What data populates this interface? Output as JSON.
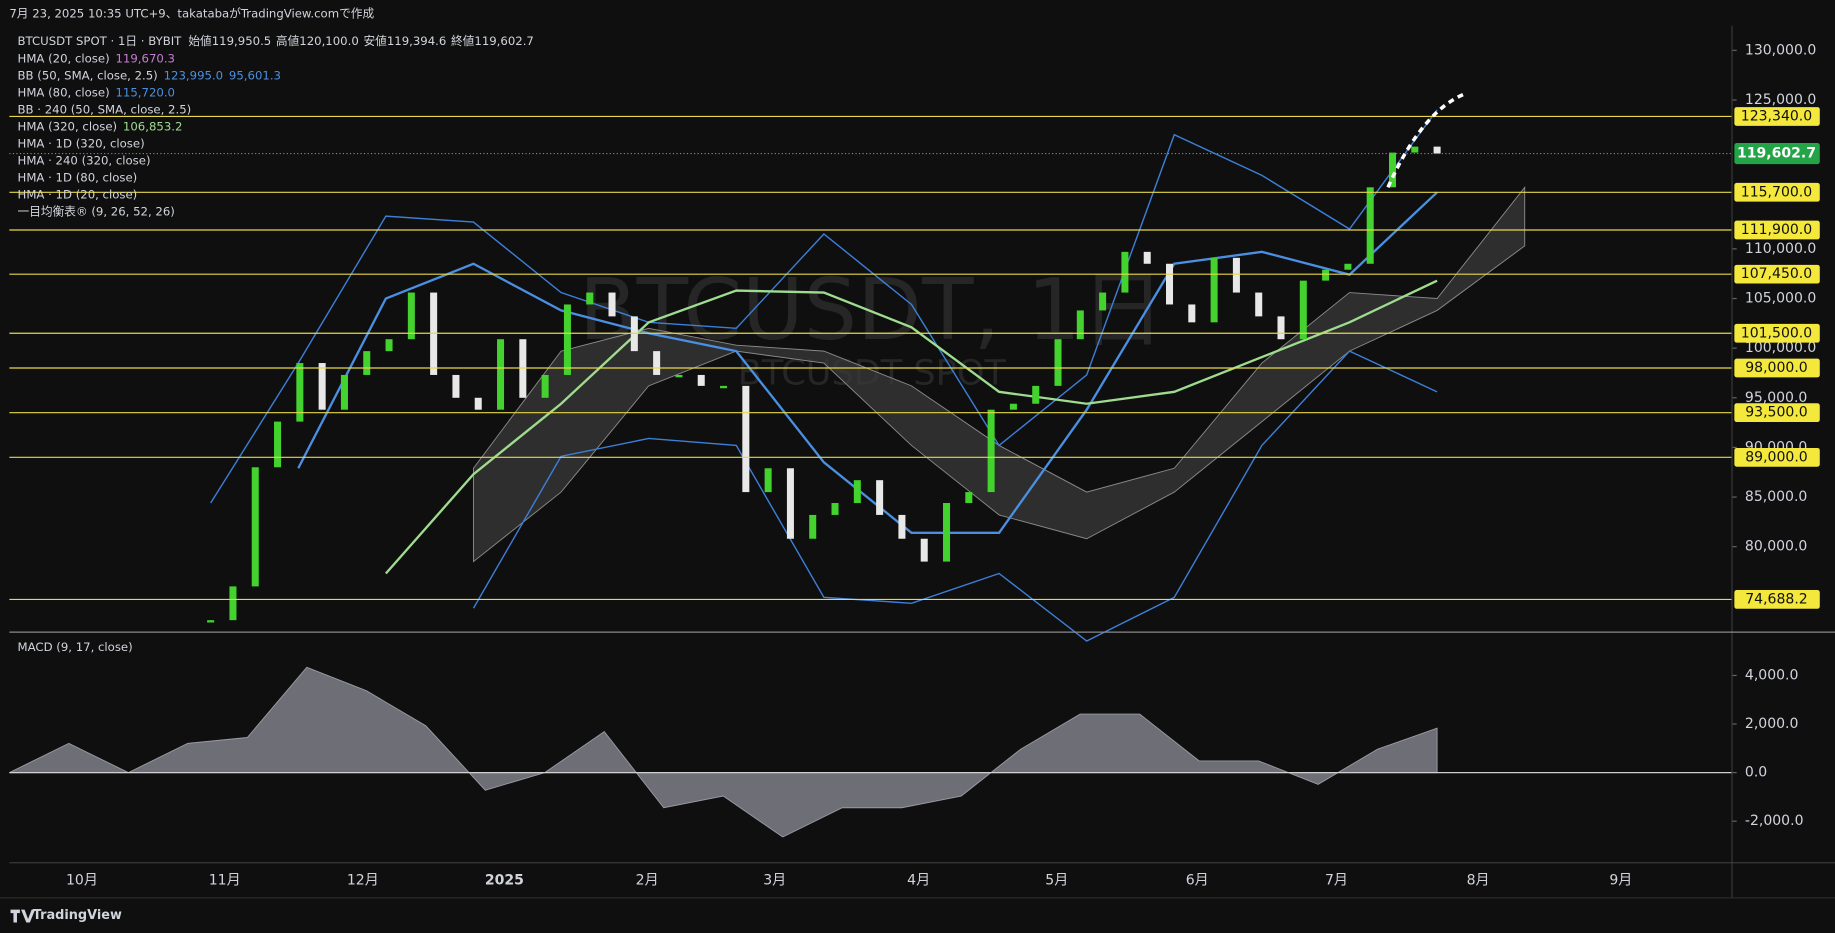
{
  "header": {
    "created": "7月 23, 2025 10:35 UTC+9、takatabaがTradingView.comで作成"
  },
  "legend": {
    "symbol": "BTCUSDT SPOT · 1日 · BYBIT",
    "ohlc": [
      {
        "label": "始値",
        "value": "119,950.5"
      },
      {
        "label": "高値",
        "value": "120,100.0"
      },
      {
        "label": "安値",
        "value": "119,394.6"
      },
      {
        "label": "終値",
        "value": "119,602.7"
      }
    ],
    "indicators": [
      {
        "label": "HMA (20, close)",
        "values": [
          "119,670.3"
        ],
        "color": "#c77dd4"
      },
      {
        "label": "BB (50, SMA, close, 2.5)",
        "values": [
          "123,995.0",
          "95,601.3"
        ],
        "color": "#4a8fe2"
      },
      {
        "label": "HMA (80, close)",
        "values": [
          "115,720.0"
        ],
        "color": "#4a8fe2"
      },
      {
        "label": "BB · 240 (50, SMA, close, 2.5)"
      },
      {
        "label": "HMA (320, close)",
        "values": [
          "106,853.2"
        ],
        "color": "#9fdc8f"
      },
      {
        "label": "HMA · 1D (320, close)"
      },
      {
        "label": "HMA · 240 (320, close)"
      },
      {
        "label": "HMA · 1D (80, close)"
      },
      {
        "label": "HMA · 1D (20, close)"
      },
      {
        "label": "一目均衡表® (9, 26, 52, 26)"
      }
    ]
  },
  "watermark": {
    "title": "BTCUSDT, 1日",
    "subtitle": "BTCUSDT SPOT"
  },
  "footer": {
    "brand": "TradingView"
  },
  "chart_data": [
    {
      "type": "candlestick",
      "up_color": "#43d22e",
      "down_color": "#e8e8e8",
      "values": [
        72600,
        76000,
        88000,
        92600,
        98500,
        93800,
        97300,
        99700,
        100900,
        105600,
        97300,
        95000,
        93800,
        100900,
        95000,
        97300,
        104400,
        105600,
        103200,
        99700,
        97300,
        97300,
        96200,
        96200,
        85500,
        87900,
        80800,
        83200,
        84400,
        86700,
        83200,
        80800,
        78500,
        84400,
        85500,
        93800,
        94400,
        96200,
        100900,
        103800,
        105600,
        109700,
        108500,
        104400,
        102600,
        109100,
        105600,
        103200,
        100900,
        106800,
        107900,
        108500,
        116200,
        119700,
        120300,
        119602.7
      ],
      "overlays": [
        {
          "color": "#3d7fd8",
          "values": [
            84400,
            98500,
            113300,
            112700,
            105600,
            102600,
            102000,
            111500,
            104400,
            90200,
            97300,
            121500,
            117400,
            112000,
            124000
          ]
        },
        {
          "color": "#3d7fd8",
          "values": [
            null,
            null,
            null,
            73800,
            89100,
            90900,
            90200,
            74900,
            74300,
            77300,
            70500,
            74900,
            90200,
            99700,
            95600
          ]
        },
        {
          "color": "#4a8fe2",
          "values": [
            null,
            87900,
            105000,
            108500,
            103800,
            101500,
            99700,
            88500,
            81400,
            81400,
            93800,
            108500,
            109700,
            107400,
            115700
          ]
        },
        {
          "color": "#9fdc8f",
          "values": [
            null,
            null,
            77300,
            87300,
            94400,
            102600,
            105800,
            105600,
            102100,
            95600,
            94400,
            95600,
            99100,
            102600,
            106800
          ]
        }
      ],
      "cloud": {
        "color": "#3a3a3a",
        "top": [
          null,
          null,
          null,
          87900,
          99700,
          102000,
          100300,
          99700,
          96200,
          90200,
          85500,
          87900,
          98500,
          105600,
          105000,
          116200
        ],
        "bottom": [
          null,
          null,
          null,
          78500,
          85500,
          96200,
          99700,
          98500,
          90200,
          83200,
          80800,
          85500,
          92600,
          99700,
          103800,
          110300
        ]
      },
      "levels": [
        {
          "value": 123340,
          "label": "123,340.0"
        },
        {
          "value": 115700,
          "label": "115,700.0"
        },
        {
          "value": 111900,
          "label": "111,900.0"
        },
        {
          "value": 107450,
          "label": "107,450.0"
        },
        {
          "value": 101500,
          "label": "101,500.0"
        },
        {
          "value": 98000,
          "label": "98,000.0"
        },
        {
          "value": 93500,
          "label": "93,500.0"
        },
        {
          "value": 89000,
          "label": "89,000.0"
        },
        {
          "value": 74688.2,
          "label": "74,688.2"
        }
      ],
      "level_color": "#e6d84a",
      "current": {
        "value": 119602.7,
        "label": "119,602.7",
        "color": "#22a447"
      },
      "ylim": [
        71392,
        132476
      ],
      "yticks": [
        {
          "value": 130000,
          "label": "130,000.0"
        },
        {
          "value": 125000,
          "label": "125,000.0"
        },
        {
          "value": 110000,
          "label": "110,000.0"
        },
        {
          "value": 105000,
          "label": "105,000.0"
        },
        {
          "value": 100000,
          "label": "100,000.0"
        },
        {
          "value": 95000,
          "label": "95,000.0"
        },
        {
          "value": 90000,
          "label": "90,000.0"
        },
        {
          "value": 85000,
          "label": "85,000.0"
        },
        {
          "value": 80000,
          "label": "80,000.0"
        }
      ],
      "x_labels": [
        "10月",
        "11月",
        "12月",
        "2025",
        "2月",
        "3月",
        "4月",
        "5月",
        "6月",
        "7月",
        "8月",
        "9月"
      ]
    },
    {
      "type": "area",
      "title": "MACD (9, 17, close)",
      "color": "#6e6e76",
      "values": [
        0,
        1205,
        0,
        1205,
        1446,
        4337,
        3373,
        1928,
        -723,
        0,
        1687,
        -1446,
        -964,
        -2651,
        -1446,
        -1446,
        -964,
        964,
        2410,
        2410,
        482,
        482,
        -482,
        964,
        1831
      ],
      "ylim": [
        -3711,
        5783
      ],
      "yticks": [
        {
          "value": 4000,
          "label": "4,000.0"
        },
        {
          "value": 2000,
          "label": "2,000.0"
        },
        {
          "value": 0,
          "label": "0.0"
        },
        {
          "value": -2000,
          "label": "-2,000.0"
        }
      ]
    }
  ]
}
